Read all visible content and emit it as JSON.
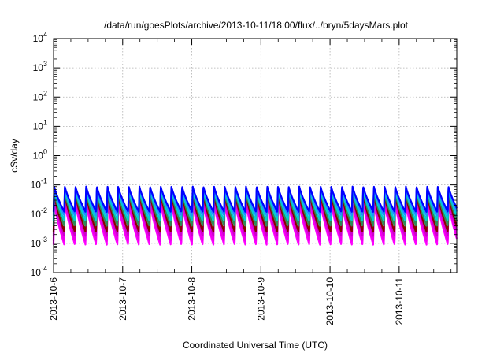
{
  "chart_data": {
    "type": "line",
    "title": "/data/run/goesPlots/archive/2013-10-11/18:00/flux/../bryn/5daysMars.plot",
    "xlabel": "Coordinated Universal Time (UTC)",
    "ylabel": "cSv/day",
    "yscale": "log",
    "ylim": [
      0.0001,
      10000
    ],
    "xlim": [
      "2013-10-06T00:00",
      "2013-10-11T20:00"
    ],
    "grid": true,
    "x_tick_labels": [
      "2013-10-6",
      "2013-10-7",
      "2013-10-8",
      "2013-10-9",
      "2013-10-10",
      "2013-10-11"
    ],
    "y_ticks": [
      {
        "base": "10",
        "exp": "-4"
      },
      {
        "base": "10",
        "exp": "-3"
      },
      {
        "base": "10",
        "exp": "-2"
      },
      {
        "base": "10",
        "exp": "-1"
      },
      {
        "base": "10",
        "exp": "0"
      },
      {
        "base": "10",
        "exp": "1"
      },
      {
        "base": "10",
        "exp": "2"
      },
      {
        "base": "10",
        "exp": "3"
      },
      {
        "base": "10",
        "exp": "4"
      }
    ],
    "oscillation_period_hours": 3.7,
    "series": [
      {
        "color": "#ff00ff",
        "peak": 0.025,
        "trough": 0.0009
      },
      {
        "color": "#ee00ee",
        "peak": 0.03,
        "trough": 0.0012
      },
      {
        "color": "#cc00cc",
        "peak": 0.04,
        "trough": 0.0018
      },
      {
        "color": "#8b0000",
        "peak": 0.05,
        "trough": 0.0025
      },
      {
        "color": "#2e8b57",
        "peak": 0.06,
        "trough": 0.004
      },
      {
        "color": "#00ced1",
        "peak": 0.07,
        "trough": 0.006
      },
      {
        "color": "#1e90ff",
        "peak": 0.08,
        "trough": 0.009
      },
      {
        "color": "#0000ff",
        "peak": 0.09,
        "trough": 0.012
      }
    ]
  }
}
